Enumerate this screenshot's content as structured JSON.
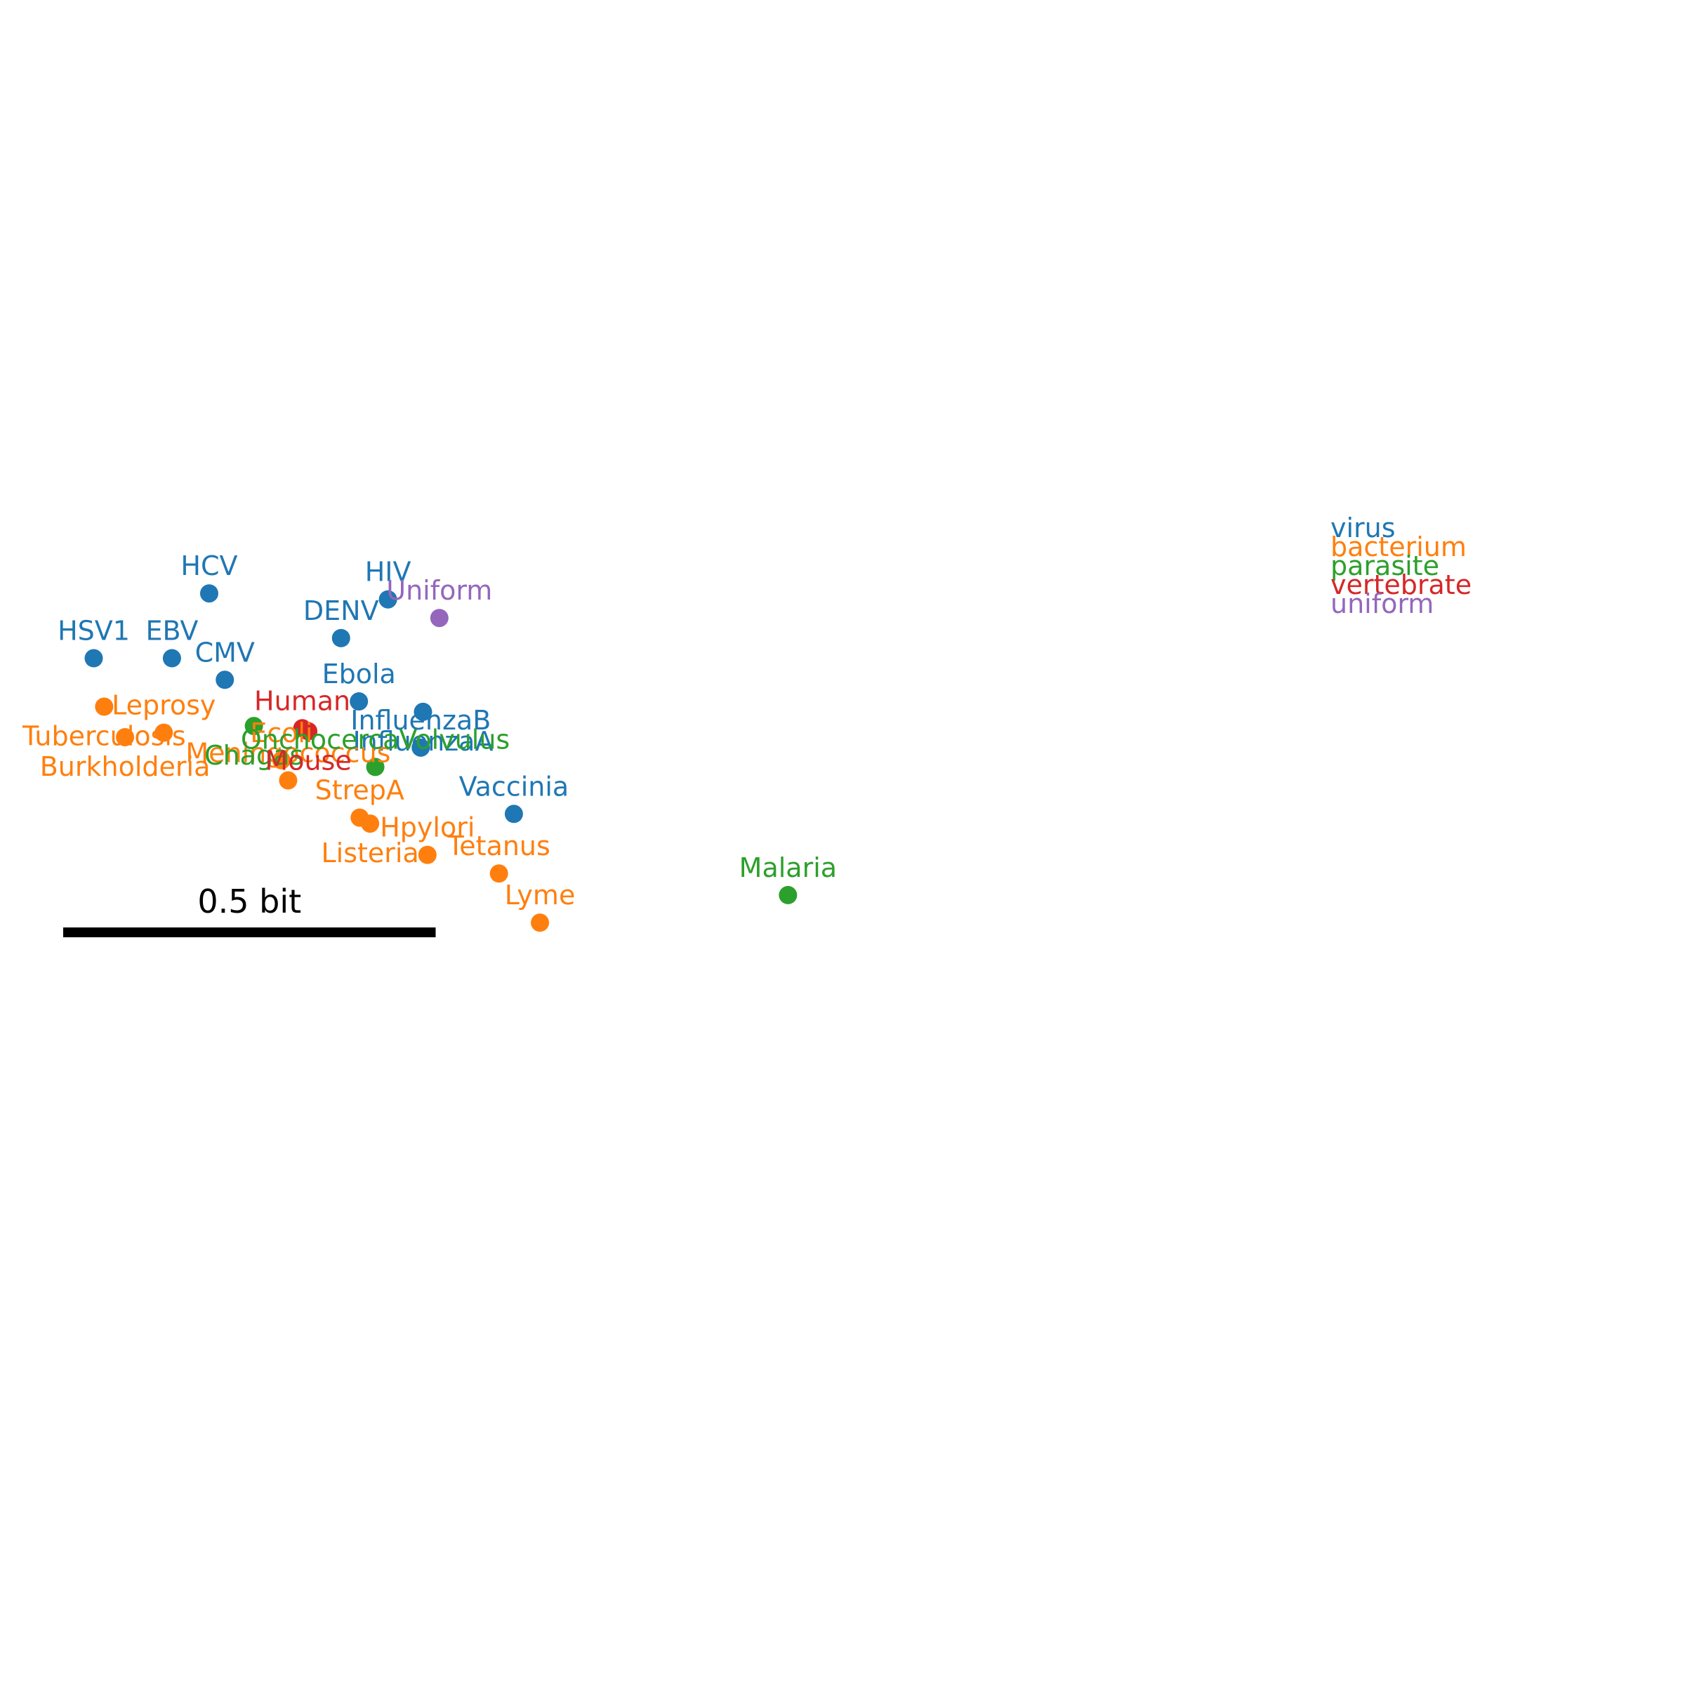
{
  "chart_data": {
    "type": "scatter",
    "title": "",
    "xlabel": "",
    "ylabel": "",
    "axes_visible": false,
    "grid": false,
    "legend_placement": "right",
    "xlim": [
      -0.05,
      1.05
    ],
    "ylim": [
      -0.55,
      0.55
    ],
    "category_colors": {
      "virus": "#1f77b4",
      "bacterium": "#ff7f0e",
      "parasite": "#2ca02c",
      "vertebrate": "#d62728",
      "uniform": "#9467bd"
    },
    "legend": [
      "virus",
      "bacterium",
      "parasite",
      "vertebrate",
      "uniform"
    ],
    "points": [
      {
        "name": "HCV",
        "category": "virus",
        "x": 0.196,
        "y": 0.226,
        "label_pos": "above"
      },
      {
        "name": "HIV",
        "category": "virus",
        "x": 0.436,
        "y": 0.218,
        "label_pos": "above"
      },
      {
        "name": "Uniform",
        "category": "uniform",
        "x": 0.505,
        "y": 0.193,
        "label_pos": "above"
      },
      {
        "name": "DENV",
        "category": "virus",
        "x": 0.373,
        "y": 0.166,
        "label_pos": "above"
      },
      {
        "name": "HSV1",
        "category": "virus",
        "x": 0.041,
        "y": 0.139,
        "label_pos": "above"
      },
      {
        "name": "EBV",
        "category": "virus",
        "x": 0.146,
        "y": 0.139,
        "label_pos": "above"
      },
      {
        "name": "CMV",
        "category": "virus",
        "x": 0.217,
        "y": 0.11,
        "label_pos": "above"
      },
      {
        "name": "Ebola",
        "category": "virus",
        "x": 0.397,
        "y": 0.081,
        "label_pos": "above"
      },
      {
        "name": "InfluenzaA",
        "category": "virus",
        "x": 0.483,
        "y": 0.067,
        "label_pos": "below"
      },
      {
        "name": "InfluenzaB",
        "category": "virus",
        "x": 0.48,
        "y": 0.019,
        "label_pos": "above"
      },
      {
        "name": "Vaccinia",
        "category": "virus",
        "x": 0.605,
        "y": -0.07,
        "label_pos": "above"
      },
      {
        "name": "Tuberculosis",
        "category": "bacterium",
        "x": 0.055,
        "y": 0.074,
        "label_pos": "below"
      },
      {
        "name": "Leprosy",
        "category": "bacterium",
        "x": 0.135,
        "y": 0.039,
        "label_pos": "above"
      },
      {
        "name": "Burkholderia",
        "category": "bacterium",
        "x": 0.083,
        "y": 0.033,
        "label_pos": "below"
      },
      {
        "name": "Ecoli",
        "category": "bacterium",
        "x": 0.293,
        "y": 0.002,
        "label_pos": "above"
      },
      {
        "name": "Meningococcus",
        "category": "bacterium",
        "x": 0.302,
        "y": -0.025,
        "label_pos": "above"
      },
      {
        "name": "StrepA",
        "category": "bacterium",
        "x": 0.398,
        "y": -0.075,
        "label_pos": "above"
      },
      {
        "name": "Listeria",
        "category": "bacterium",
        "x": 0.412,
        "y": -0.083,
        "label_pos": "below"
      },
      {
        "name": "Hpylori",
        "category": "bacterium",
        "x": 0.489,
        "y": -0.125,
        "label_pos": "above"
      },
      {
        "name": "Tetanus",
        "category": "bacterium",
        "x": 0.585,
        "y": -0.15,
        "label_pos": "above"
      },
      {
        "name": "Lyme",
        "category": "bacterium",
        "x": 0.64,
        "y": -0.216,
        "label_pos": "above"
      },
      {
        "name": "Chagas",
        "category": "parasite",
        "x": 0.256,
        "y": 0.048,
        "label_pos": "below"
      },
      {
        "name": "OnchocercaVolvulus",
        "category": "parasite",
        "x": 0.419,
        "y": -0.007,
        "label_pos": "above"
      },
      {
        "name": "Malaria",
        "category": "parasite",
        "x": 0.973,
        "y": -0.179,
        "label_pos": "above"
      },
      {
        "name": "Human",
        "category": "vertebrate",
        "x": 0.321,
        "y": 0.045,
        "label_pos": "above"
      },
      {
        "name": "Mouse",
        "category": "vertebrate",
        "x": 0.329,
        "y": 0.041,
        "label_pos": "below"
      }
    ],
    "scale_bar": {
      "label": "0.5 bit",
      "length": 0.5,
      "x_start": 0.0,
      "y": -0.229
    }
  }
}
